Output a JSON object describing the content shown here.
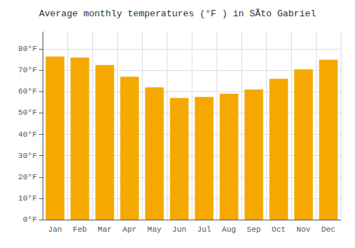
{
  "chart_data": {
    "type": "bar",
    "title": "Average monthly temperatures (°F ) in SÃto Gabriel",
    "categories": [
      "Jan",
      "Feb",
      "Mar",
      "Apr",
      "May",
      "Jun",
      "Jul",
      "Aug",
      "Sep",
      "Oct",
      "Nov",
      "Dec"
    ],
    "values": [
      76.5,
      76.0,
      72.5,
      67.0,
      62.0,
      57.0,
      57.5,
      59.0,
      61.0,
      66.0,
      70.5,
      75.0
    ],
    "color": "#F5A800",
    "ylim": [
      0,
      88
    ],
    "yticks": [
      {
        "value": 0,
        "label": "0°F"
      },
      {
        "value": 10,
        "label": "10°F"
      },
      {
        "value": 20,
        "label": "20°F"
      },
      {
        "value": 30,
        "label": "30°F"
      },
      {
        "value": 40,
        "label": "40°F"
      },
      {
        "value": 50,
        "label": "50°F"
      },
      {
        "value": 60,
        "label": "60°F"
      },
      {
        "value": 70,
        "label": "70°F"
      },
      {
        "value": 80,
        "label": "80°F"
      }
    ],
    "grid": true
  }
}
